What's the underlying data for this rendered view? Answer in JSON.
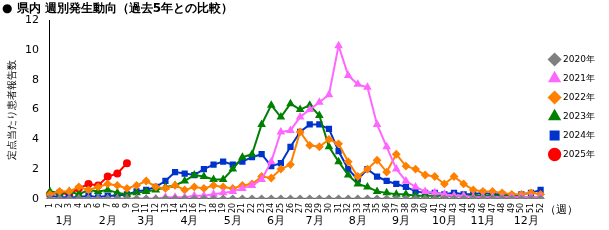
{
  "chart_data": {
    "type": "line",
    "title": "● 県内 週別発生動向（過去5年との比較）",
    "y_label": "定点当たり患者報告数",
    "x_label": "（週）",
    "categories": [
      1,
      2,
      3,
      4,
      5,
      6,
      7,
      8,
      9,
      10,
      11,
      12,
      13,
      14,
      15,
      16,
      17,
      18,
      19,
      20,
      21,
      22,
      23,
      24,
      25,
      26,
      27,
      28,
      29,
      30,
      31,
      32,
      33,
      34,
      35,
      36,
      37,
      38,
      39,
      40,
      41,
      42,
      43,
      44,
      45,
      46,
      47,
      48,
      49,
      50,
      51,
      52
    ],
    "annotations": [
      {
        "text": "1月",
        "x": 2.5
      },
      {
        "text": "2月",
        "x": 7
      },
      {
        "text": "3月",
        "x": 11
      },
      {
        "text": "4月",
        "x": 15.5
      },
      {
        "text": "5月",
        "x": 20
      },
      {
        "text": "6月",
        "x": 24.5
      },
      {
        "text": "7月",
        "x": 28.5
      },
      {
        "text": "8月",
        "x": 33
      },
      {
        "text": "9月",
        "x": 37.5
      },
      {
        "text": "10月",
        "x": 42
      },
      {
        "text": "11月",
        "x": 46
      },
      {
        "text": "12月",
        "x": 50.5
      }
    ],
    "ylim": [
      0,
      12
    ],
    "yticks": [
      0,
      2,
      4,
      6,
      8,
      10,
      12
    ],
    "grid": false,
    "legend": "right",
    "series": [
      {
        "name": "2020年",
        "color": "#808080",
        "marker": "diamond",
        "values": [
          0,
          0,
          0,
          0,
          0,
          0,
          0,
          0,
          0,
          0,
          0,
          0,
          0,
          0,
          0,
          0,
          0,
          0,
          0,
          0,
          0,
          0,
          0,
          0,
          0,
          0,
          0,
          0,
          0,
          0,
          0,
          0,
          0,
          0,
          0,
          0,
          0,
          0,
          0,
          0,
          0,
          0,
          0,
          0,
          0,
          0,
          0,
          0,
          0,
          0,
          0,
          0
        ]
      },
      {
        "name": "2021年",
        "color": "#ff66ff",
        "marker": "triangle",
        "values": [
          0,
          0,
          0,
          0,
          0,
          0,
          0,
          0,
          0,
          0,
          0,
          0,
          0.1,
          0.1,
          0.1,
          0.2,
          0.2,
          0.3,
          0.4,
          0.5,
          0.7,
          0.9,
          1.3,
          2.5,
          4.5,
          4.6,
          5.5,
          6.0,
          6.5,
          7.0,
          10.3,
          8.3,
          7.7,
          7.5,
          5.0,
          3.5,
          2.0,
          1.2,
          0.8,
          0.5,
          0.4,
          0.3,
          0.2,
          0.2,
          0.1,
          0.1,
          0.1,
          0.1,
          0.1,
          0.1,
          0.1,
          0.1
        ]
      },
      {
        "name": "2022年",
        "color": "#ff8000",
        "marker": "diamond",
        "values": [
          0.3,
          0.5,
          0.5,
          0.8,
          0.6,
          0.8,
          1.0,
          0.9,
          0.7,
          0.9,
          1.2,
          0.8,
          0.7,
          0.9,
          0.6,
          0.8,
          0.7,
          0.9,
          0.8,
          0.7,
          0.9,
          1.0,
          1.5,
          1.4,
          2.0,
          2.3,
          4.5,
          3.6,
          3.5,
          4.0,
          3.7,
          2.5,
          1.5,
          2.0,
          2.6,
          1.8,
          3.0,
          2.2,
          2.0,
          1.6,
          1.5,
          1.0,
          1.5,
          1.0,
          0.6,
          0.5,
          0.5,
          0.4,
          0.3,
          0.3,
          0.4,
          0.3
        ]
      },
      {
        "name": "2023年",
        "color": "#008000",
        "marker": "triangle",
        "values": [
          0.5,
          0.4,
          0.5,
          0.3,
          0.6,
          0.5,
          0.6,
          0.4,
          0.3,
          0.4,
          0.5,
          0.6,
          0.8,
          0.9,
          1.2,
          1.6,
          1.5,
          1.3,
          1.3,
          2.0,
          2.8,
          3.0,
          5.0,
          6.3,
          5.5,
          6.4,
          6.0,
          6.3,
          5.6,
          3.5,
          2.5,
          1.6,
          1.0,
          0.8,
          0.5,
          0.4,
          0.3,
          0.3,
          0.2,
          0.2,
          0.2,
          0.2,
          0.2,
          0.2,
          0.2,
          0.2,
          0.2,
          0.2,
          0.2,
          0.1,
          0.1,
          0.1
        ]
      },
      {
        "name": "2024年",
        "color": "#0033cc",
        "marker": "square",
        "values": [
          0.2,
          0.1,
          0.1,
          0.1,
          0.2,
          0.1,
          0.2,
          0.2,
          0.3,
          0.5,
          0.6,
          0.8,
          1.2,
          1.8,
          1.7,
          1.6,
          2.0,
          2.3,
          2.5,
          2.3,
          2.5,
          2.8,
          3.0,
          2.2,
          2.4,
          3.5,
          4.5,
          5.0,
          5.0,
          4.7,
          3.2,
          2.0,
          1.3,
          2.0,
          1.5,
          1.2,
          1.0,
          0.8,
          0.5,
          0.4,
          0.4,
          0.3,
          0.4,
          0.3,
          0.3,
          0.4,
          0.3,
          0.3,
          0.2,
          0.3,
          0.4,
          0.6
        ]
      },
      {
        "name": "2025年",
        "color": "#ff0000",
        "marker": "circle",
        "values": [
          0.3,
          0.4,
          0.3,
          0.7,
          1.0,
          0.9,
          1.5,
          1.7,
          2.4,
          null,
          null,
          null,
          null,
          null,
          null,
          null,
          null,
          null,
          null,
          null,
          null,
          null,
          null,
          null,
          null,
          null,
          null,
          null,
          null,
          null,
          null,
          null,
          null,
          null,
          null,
          null,
          null,
          null,
          null,
          null,
          null,
          null,
          null,
          null,
          null,
          null,
          null,
          null,
          null,
          null,
          null,
          null
        ]
      }
    ]
  }
}
